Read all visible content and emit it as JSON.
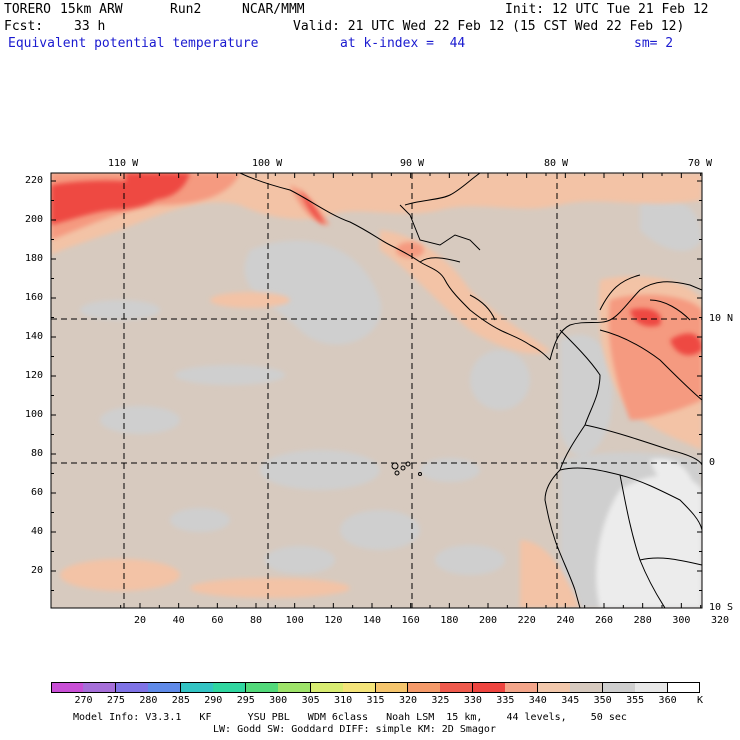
{
  "header": {
    "model": "TORERO",
    "resolution": "15km ARW",
    "run": "Run2",
    "org": "NCAR/MMM",
    "init": "Init: 12 UTC Tue 21 Feb 12",
    "fcst_label": "Fcst:",
    "fcst_value": "33 h",
    "valid": "Valid: 21 UTC Wed 22 Feb 12 (15 CST Wed 22 Feb 12)",
    "field": "Equivalent potential temperature",
    "level": "at k-index =  44",
    "smoothing": "sm= 2"
  },
  "map": {
    "top_lon_labels": [
      "110 W",
      "100 W",
      "90 W",
      "80 W",
      "70 W"
    ],
    "right_lat_labels": [
      "10 N",
      "0",
      "10 S"
    ],
    "y_ticks": [
      "220",
      "200",
      "180",
      "160",
      "140",
      "120",
      "100",
      "80",
      "60",
      "40",
      "20"
    ],
    "x_ticks": [
      "20",
      "40",
      "60",
      "80",
      "100",
      "120",
      "140",
      "160",
      "180",
      "200",
      "220",
      "240",
      "260",
      "280",
      "300",
      "320"
    ]
  },
  "colorbar": {
    "unit": "K",
    "levels": [
      "270",
      "275",
      "280",
      "285",
      "290",
      "295",
      "300",
      "305",
      "310",
      "315",
      "320",
      "325",
      "330",
      "335",
      "340",
      "345",
      "350",
      "355",
      "360"
    ],
    "colors": [
      "#c94fd6",
      "#a66fd9",
      "#7f73e6",
      "#5f8ae8",
      "#33c4c4",
      "#30d6a0",
      "#52d97a",
      "#9ee36a",
      "#d8ec72",
      "#f4e47a",
      "#f5c56d",
      "#f59a6a",
      "#ef5a4d",
      "#ee4540",
      "#f3a58a",
      "#f2c8ac",
      "#d7cabf",
      "#cfcfcf",
      "#e8e8e8",
      "#ffffff"
    ]
  },
  "footer": {
    "line1": "Model Info: V3.3.1   KF      YSU PBL   WDM 6class   Noah LSM  15 km,    44 levels,    50 sec",
    "line2": "LW: Godd SW: Goddard DIFF: simple KM: 2D Smagor"
  }
}
